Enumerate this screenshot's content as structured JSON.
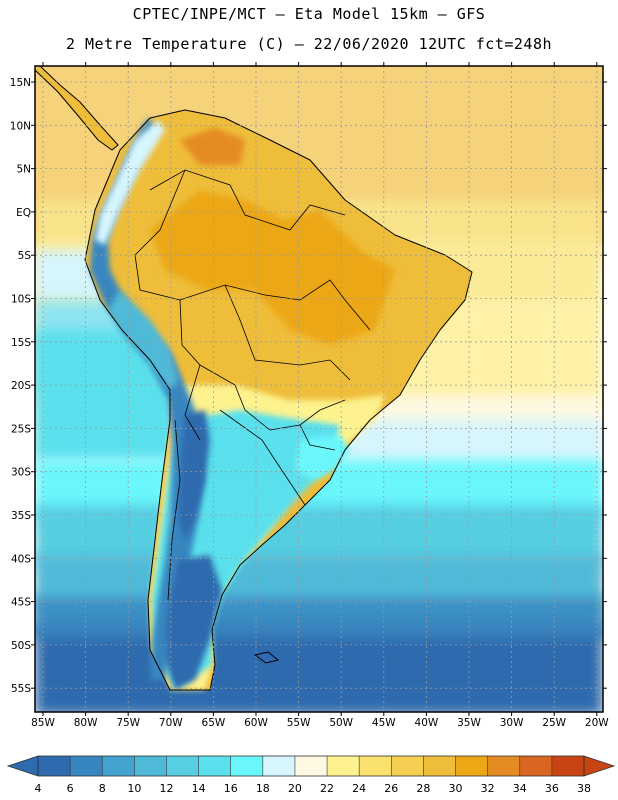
{
  "header": {
    "line1": "CPTEC/INPE/MCT –  Eta Model 15km – GFS",
    "line2": "2 Metre Temperature (C) – 22/06/2020 12UTC fct=248h"
  },
  "map": {
    "lat_labels": [
      "15N",
      "10N",
      "5N",
      "EQ",
      "5S",
      "10S",
      "15S",
      "20S",
      "25S",
      "30S",
      "35S",
      "40S",
      "45S",
      "50S",
      "55S"
    ],
    "lon_labels": [
      "85W",
      "80W",
      "75W",
      "70W",
      "65W",
      "60W",
      "55W",
      "50W",
      "45W",
      "40W",
      "35W",
      "30W",
      "25W",
      "20W"
    ]
  },
  "colorbar": {
    "labels": [
      "4",
      "6",
      "8",
      "10",
      "12",
      "14",
      "16",
      "18",
      "20",
      "22",
      "24",
      "26",
      "28",
      "30",
      "32",
      "34",
      "36",
      "38"
    ],
    "colors": [
      "#2e6aae",
      "#3786c0",
      "#43a2cf",
      "#4fbad8",
      "#57cee2",
      "#5ae0ec",
      "#69f7fc",
      "#d6f5fd",
      "#fef8e2",
      "#fdf28e",
      "#fbe16e",
      "#f4cf52",
      "#eebd3a",
      "#eca716",
      "#e58b23",
      "#d86520",
      "#c84413"
    ]
  }
}
